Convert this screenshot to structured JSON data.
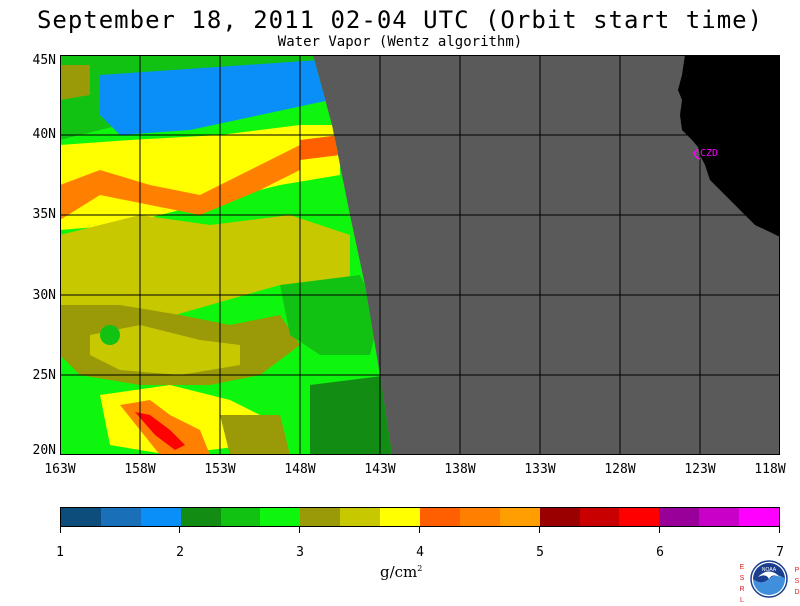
{
  "header": {
    "title": "September 18, 2011  02-04 UTC  (Orbit start time)",
    "subtitle": "Water Vapor (Wentz algorithm)"
  },
  "map": {
    "lat_labels": [
      "45N",
      "40N",
      "35N",
      "30N",
      "25N",
      "20N"
    ],
    "lon_labels": [
      "163W",
      "158W",
      "153W",
      "148W",
      "143W",
      "138W",
      "133W",
      "128W",
      "123W",
      "118W"
    ],
    "station_label": "CZD",
    "colors": {
      "land": "#000000",
      "no_data": "#5a5a5a",
      "grid": "#000000",
      "station": "#ff00ff"
    }
  },
  "colorbar": {
    "colors": [
      "#0c4d7b",
      "#1a70b8",
      "#0a8ff8",
      "#128c12",
      "#12c212",
      "#0ef50e",
      "#9a9a08",
      "#c8c800",
      "#ffff00",
      "#ff5f00",
      "#ff8000",
      "#ff9e00",
      "#990000",
      "#c80000",
      "#ff0000",
      "#990099",
      "#c800c8",
      "#ff00ff"
    ],
    "tick_labels": [
      "1",
      "2",
      "3",
      "4",
      "5",
      "6",
      "7"
    ],
    "units": "g/cm",
    "units_superscript": "2"
  },
  "logo": {
    "left_letters": [
      "E",
      "S",
      "R",
      "L"
    ],
    "right_letters": [
      "P",
      "S",
      "D"
    ],
    "center_text": "NOAA"
  }
}
